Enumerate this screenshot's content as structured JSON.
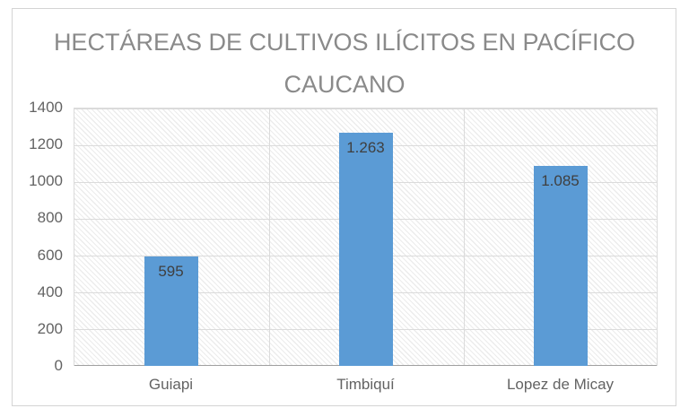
{
  "chart": {
    "title_lines": [
      "HECTÁREAS DE CULTIVOS ILÍCITOS EN PACÍFICO",
      "CAUCANO"
    ]
  },
  "chart_data": {
    "type": "bar",
    "title": "HECTÁREAS DE CULTIVOS ILÍCITOS EN PACÍFICO CAUCANO",
    "categories": [
      "Guiapi",
      "Timbiquí",
      "Lopez de Micay"
    ],
    "values": [
      595,
      1263,
      1085
    ],
    "value_labels": [
      "595",
      "1.263",
      "1.085"
    ],
    "xlabel": "",
    "ylabel": "",
    "ylim": [
      0,
      1400
    ],
    "yticks": [
      0,
      200,
      400,
      600,
      800,
      1000,
      1200,
      1400
    ],
    "grid": {
      "horizontal": true,
      "vertical_category_boundaries": true
    },
    "legend_position": "none",
    "plot_background": "light-downward-diagonal-hatch",
    "colors": {
      "bar": "#5b9bd5",
      "gridline": "#dbdbdb",
      "axis_line": "#a0a0a0",
      "title_text": "#8a8a8a",
      "tick_text": "#636363",
      "value_label_text": "#3f3f3f",
      "frame_border": "#d4d4d4",
      "hatch_line": "#ececec",
      "background": "#ffffff"
    }
  }
}
